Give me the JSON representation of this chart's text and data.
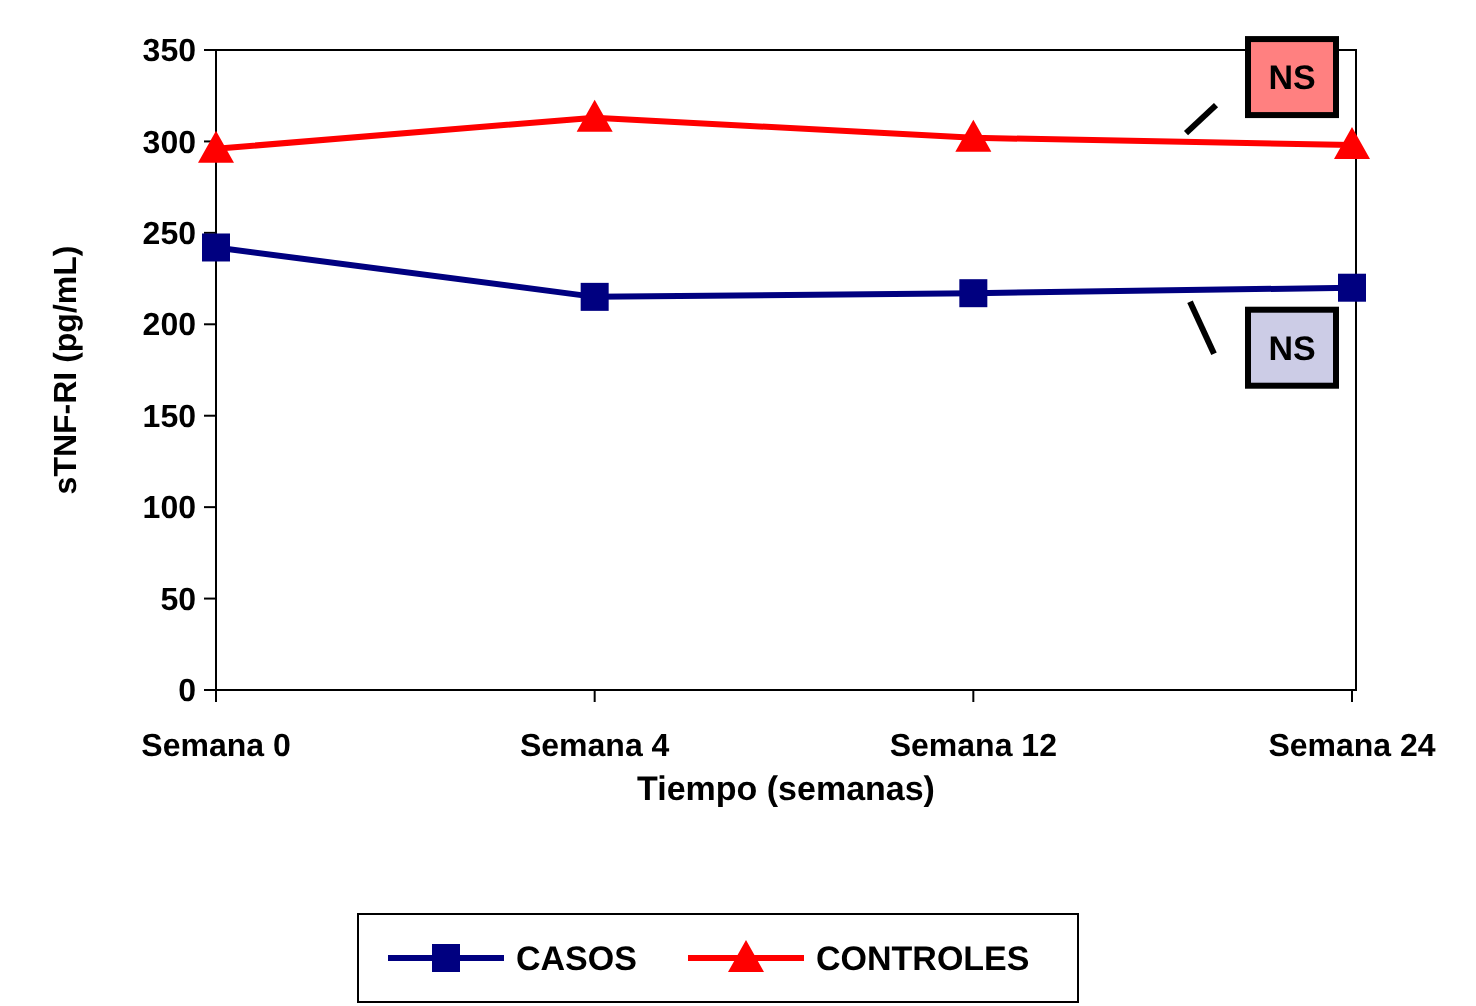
{
  "chart_data": {
    "type": "line",
    "xlabel": "Tiempo (semanas)",
    "ylabel": "sTNF-RI (pg/mL)",
    "categories": [
      "Semana 0",
      "Semana 4",
      "Semana 12",
      "Semana 24"
    ],
    "series": [
      {
        "name": "CASOS",
        "color": "#000080",
        "marker": "square",
        "values": [
          242,
          215,
          217,
          220
        ]
      },
      {
        "name": "CONTROLES",
        "color": "#ff0000",
        "marker": "triangle",
        "values": [
          296,
          313,
          302,
          298
        ]
      }
    ],
    "ylim": [
      0,
      350
    ],
    "yticks": [
      0,
      50,
      100,
      150,
      200,
      250,
      300,
      350
    ],
    "grid": false,
    "legend": "bottom",
    "annotations": [
      "NS",
      "NS"
    ]
  }
}
